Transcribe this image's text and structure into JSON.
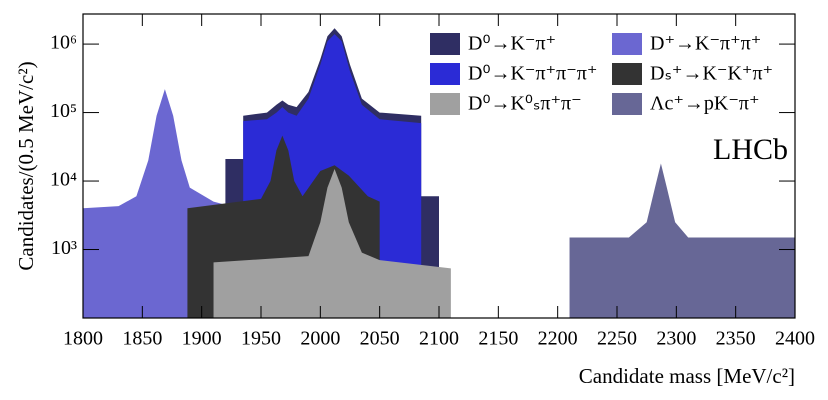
{
  "chart_data": {
    "type": "area",
    "annotation": "LHCb",
    "x_label": "Candidate mass [MeV/c²]",
    "y_label": "Candidates/(0.5 MeV/c²)",
    "log_y": true,
    "xlim": [
      1800,
      2400
    ],
    "xticks": [
      1800,
      1850,
      1900,
      1950,
      2000,
      2050,
      2100,
      2150,
      2200,
      2250,
      2300,
      2350,
      2400
    ],
    "ylim": [
      100,
      2750000
    ],
    "yticks": [
      {
        "value": 1000,
        "label": "10³"
      },
      {
        "value": 10000,
        "label": "10⁴"
      },
      {
        "value": 100000,
        "label": "10⁵"
      },
      {
        "value": 1000000,
        "label": "10⁶"
      }
    ],
    "series": [
      {
        "name": "D⁰→K⁻π⁺",
        "color": "#2f2e63",
        "x": [
          1920,
          1935,
          1935,
          1955,
          1963,
          1968,
          1973,
          1980,
          1990,
          2000,
          2006,
          2012,
          2018,
          2025,
          2035,
          2050,
          2085,
          2085,
          2100
        ],
        "values": [
          21000,
          21000,
          90000,
          100000,
          130000,
          150000,
          130000,
          120000,
          200000,
          600000,
          1300000,
          1700000,
          1300000,
          500000,
          160000,
          100000,
          90000,
          6000,
          6000
        ]
      },
      {
        "name": "D⁺→K⁻π⁺π⁺",
        "color": "#6b67d1",
        "x": [
          1800,
          1830,
          1845,
          1855,
          1862,
          1869,
          1876,
          1883,
          1890,
          1910,
          1920
        ],
        "values": [
          4000,
          4300,
          6000,
          20000,
          90000,
          220000,
          90000,
          20000,
          8000,
          5000,
          4500
        ]
      },
      {
        "name": "D⁰→K⁻π⁺π⁻π⁺",
        "color": "#2b2bd6",
        "x": [
          1935,
          1955,
          1963,
          1968,
          1973,
          1980,
          1990,
          2000,
          2006,
          2012,
          2018,
          2025,
          2035,
          2050,
          2085
        ],
        "values": [
          75000,
          80000,
          100000,
          120000,
          100000,
          90000,
          160000,
          500000,
          1100000,
          1400000,
          1100000,
          400000,
          130000,
          80000,
          70000
        ]
      },
      {
        "name": "Dₛ⁺→K⁻K⁺π⁺",
        "color": "#333333",
        "x": [
          1888,
          1950,
          1958,
          1963,
          1968,
          1973,
          1978,
          1985,
          2000,
          2012,
          2024,
          2040,
          2050
        ],
        "values": [
          4000,
          5500,
          10000,
          28000,
          46000,
          28000,
          10000,
          6000,
          14000,
          17000,
          12000,
          6000,
          5000
        ]
      },
      {
        "name": "D⁰→K⁰ₛπ⁺π⁻",
        "color": "#a0a0a0",
        "x": [
          1910,
          1990,
          2000,
          2006,
          2012,
          2018,
          2024,
          2035,
          2050,
          2110
        ],
        "values": [
          650,
          800,
          2500,
          8000,
          15000,
          8000,
          2500,
          900,
          700,
          530
        ]
      },
      {
        "name": "Λc⁺→pK⁻π⁺",
        "color": "#676796",
        "x": [
          2210,
          2260,
          2275,
          2282,
          2287,
          2292,
          2299,
          2310,
          2400
        ],
        "values": [
          1500,
          1500,
          2500,
          8000,
          18000,
          8000,
          2500,
          1500,
          1500
        ]
      }
    ]
  }
}
